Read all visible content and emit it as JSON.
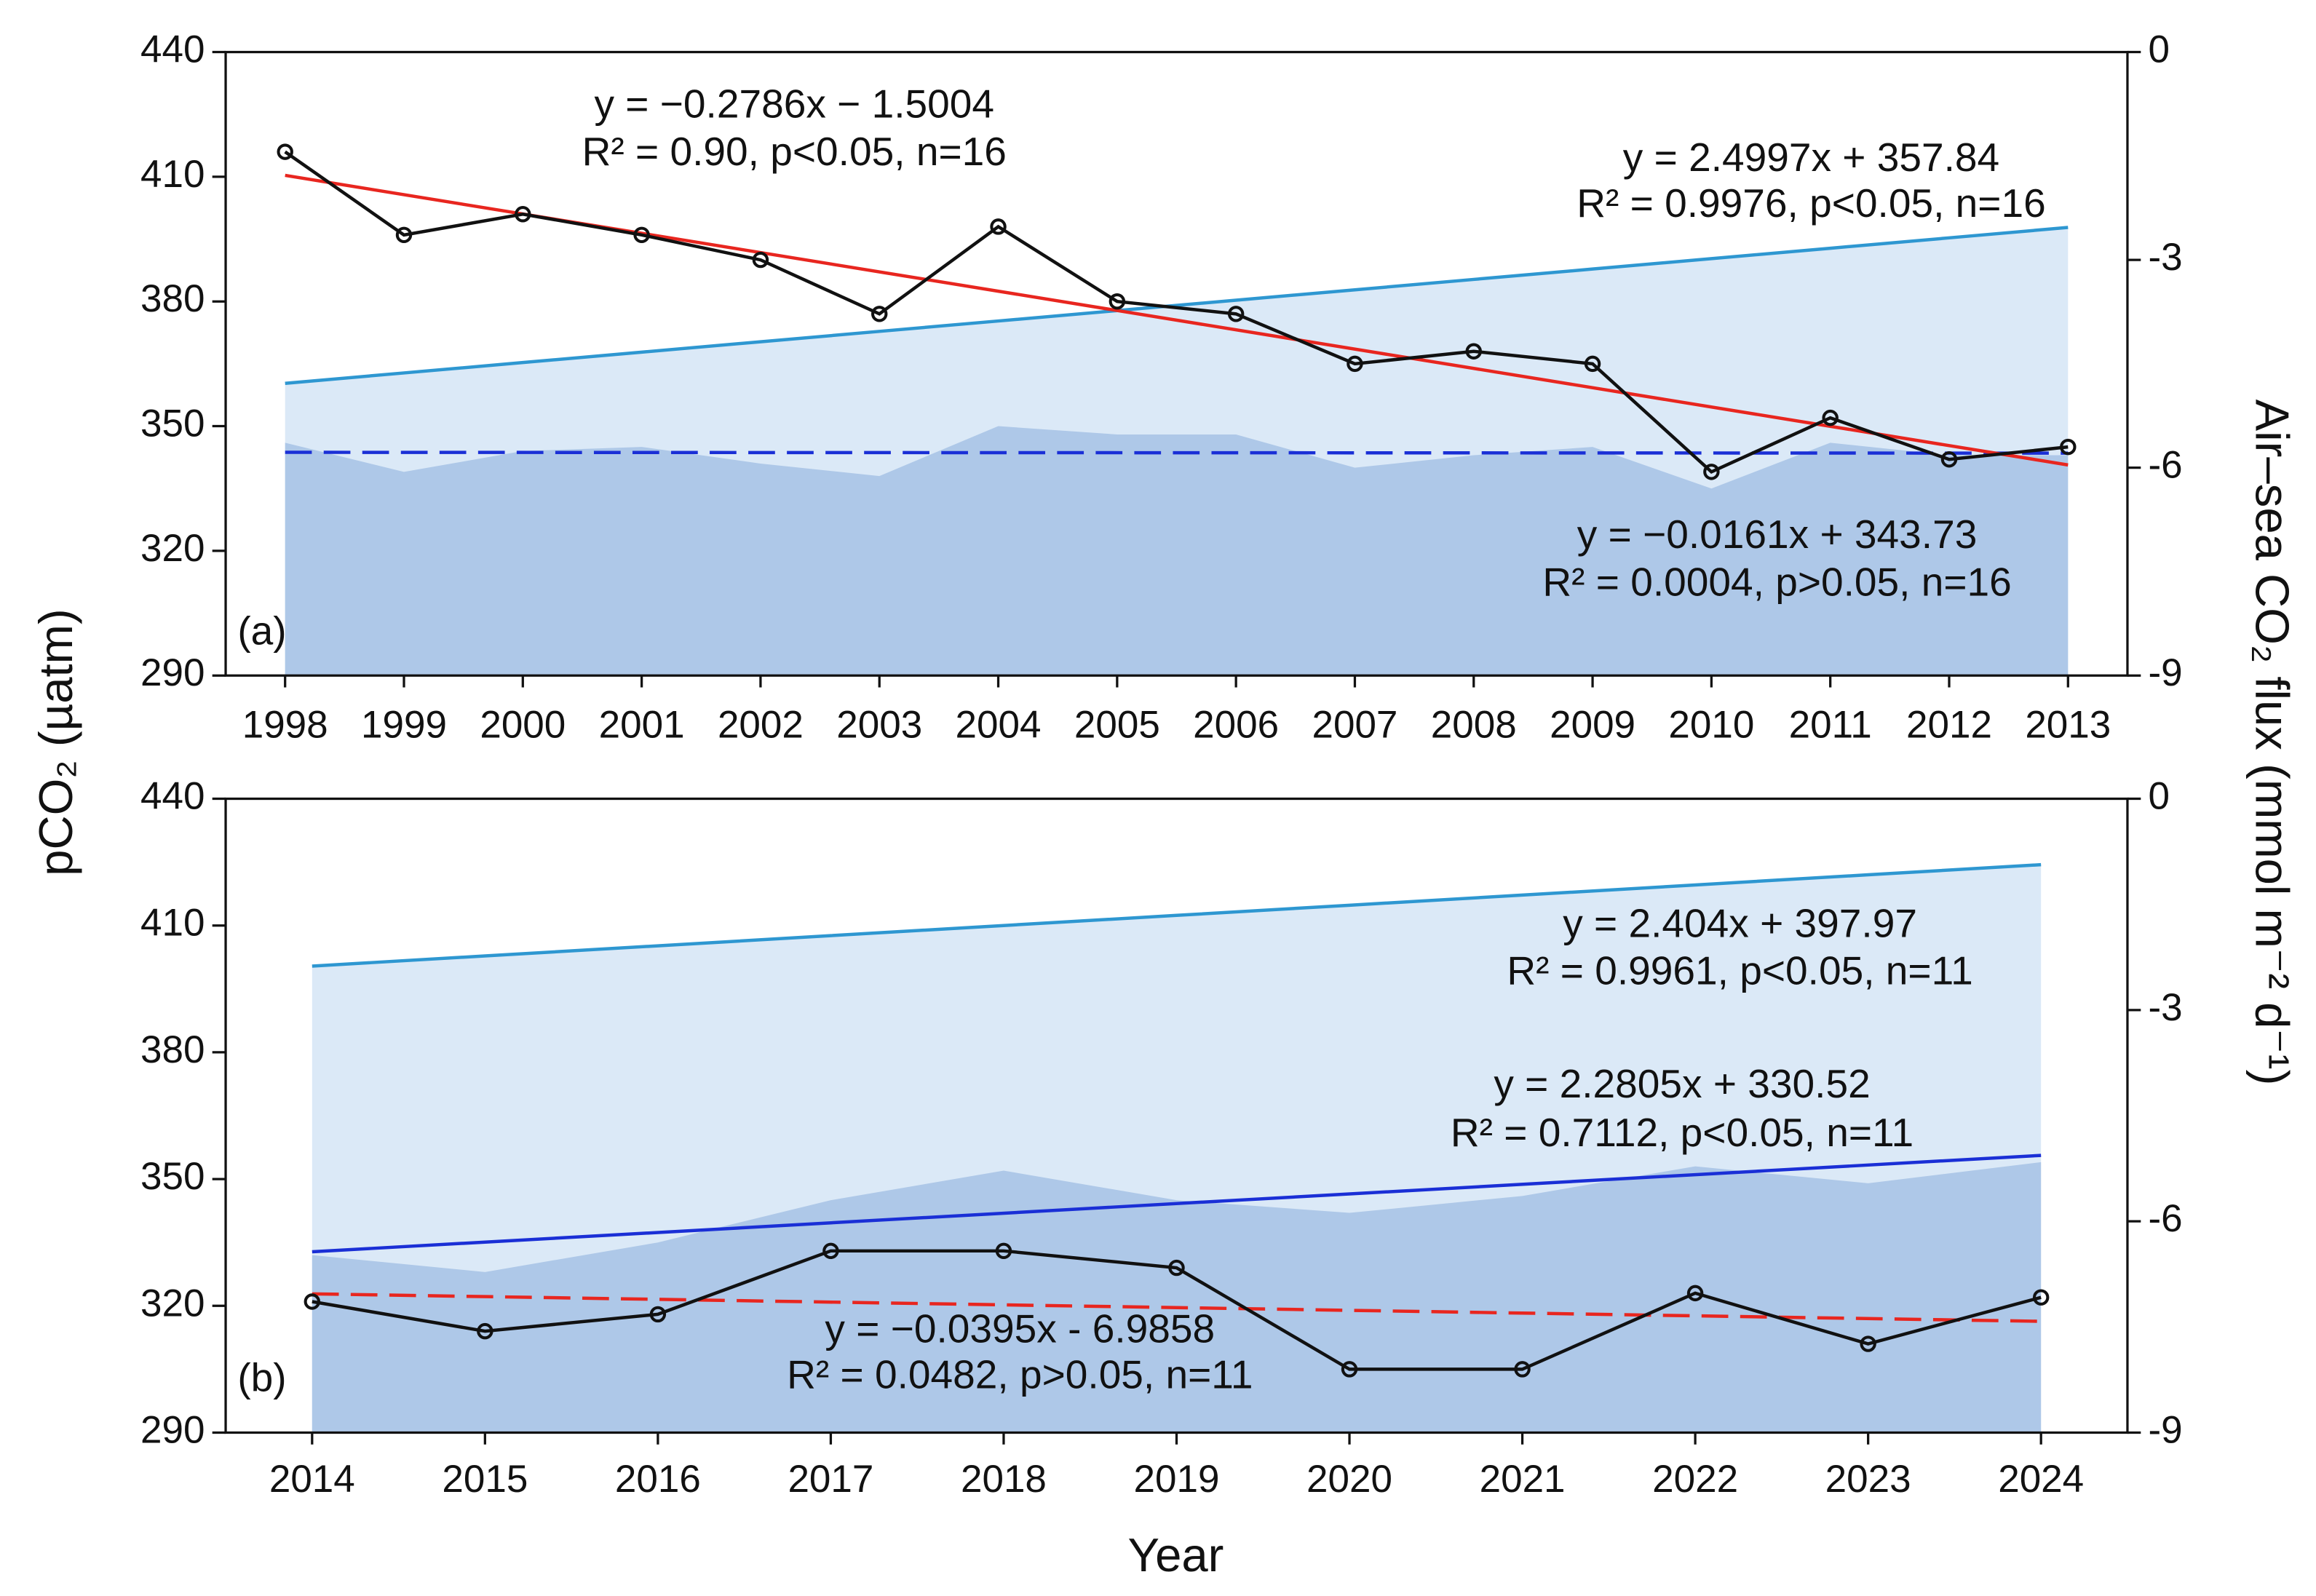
{
  "chart_data": [
    {
      "type": "line",
      "panel_label": "(a)",
      "x": [
        1998,
        1999,
        2000,
        2001,
        2002,
        2003,
        2004,
        2005,
        2006,
        2007,
        2008,
        2009,
        2010,
        2011,
        2012,
        2013
      ],
      "xticks": [
        1998,
        1999,
        2000,
        2001,
        2002,
        2003,
        2004,
        2005,
        2006,
        2007,
        2008,
        2009,
        2010,
        2011,
        2012,
        2013
      ],
      "xlim": [
        1997.5,
        2013.5
      ],
      "ylim": [
        290,
        440
      ],
      "yticks": [
        290,
        320,
        350,
        380,
        410,
        440
      ],
      "y2lim": [
        -9,
        0
      ],
      "y2ticks": [
        -9,
        -6,
        -3,
        0
      ],
      "series": [
        {
          "color": "#2e97d1",
          "fill": "#dbe9f7",
          "values": [
            360.3,
            362.8,
            365.3,
            367.8,
            370.3,
            372.8,
            375.3,
            377.8,
            380.3,
            382.8,
            385.3,
            387.8,
            390.3,
            392.8,
            395.3,
            397.8
          ]
        },
        {
          "fill": "#aec8e8",
          "values": [
            346,
            339,
            344,
            345,
            341,
            338,
            350,
            348,
            348,
            340,
            343,
            345,
            335,
            346,
            343,
            343
          ]
        },
        {
          "color": "#1a2fd6",
          "dashed": true,
          "x": [
            1998,
            2013
          ],
          "values": [
            343.7,
            343.5
          ]
        },
        {
          "color": "#e8261f",
          "axis": "y2",
          "x": [
            1998,
            2013
          ],
          "values": [
            -1.78,
            -5.96
          ]
        },
        {
          "color": "#111111",
          "axis": "y2",
          "markers": true,
          "values": [
            -1.44,
            -2.64,
            -2.34,
            -2.64,
            -3.0,
            -3.78,
            -2.52,
            -3.6,
            -3.78,
            -4.5,
            -4.32,
            -4.5,
            -6.06,
            -5.28,
            -5.88,
            -5.7
          ]
        }
      ],
      "annotations": [
        "y = −0.2786x − 1.5004",
        "R² = 0.90, p<0.05, n=16",
        "y = 2.4997x + 357.84",
        "R² = 0.9976, p<0.05, n=16",
        "y = −0.0161x + 343.73",
        "R² = 0.0004, p>0.05, n=16"
      ]
    },
    {
      "type": "line",
      "panel_label": "(b)",
      "x": [
        2014,
        2015,
        2016,
        2017,
        2018,
        2019,
        2020,
        2021,
        2022,
        2023,
        2024
      ],
      "xticks": [
        2014,
        2015,
        2016,
        2017,
        2018,
        2019,
        2020,
        2021,
        2022,
        2023,
        2024
      ],
      "xlim": [
        2013.5,
        2024.5
      ],
      "ylim": [
        290,
        440
      ],
      "yticks": [
        290,
        320,
        350,
        380,
        410,
        440
      ],
      "y2lim": [
        -9,
        0
      ],
      "y2ticks": [
        -9,
        -6,
        -3,
        0
      ],
      "series": [
        {
          "color": "#2e97d1",
          "fill": "#dbe9f7",
          "values": [
            400.4,
            402.8,
            405.2,
            407.6,
            410.0,
            412.4,
            414.8,
            417.2,
            419.6,
            422.0,
            424.4
          ]
        },
        {
          "fill": "#aec8e8",
          "values": [
            332,
            328,
            335,
            345,
            352,
            345,
            342,
            346,
            353,
            349,
            354
          ]
        },
        {
          "color": "#1a2fd6",
          "x": [
            2014,
            2024
          ],
          "values": [
            332.8,
            355.6
          ]
        },
        {
          "color": "#e8261f",
          "dashed": true,
          "axis": "y2",
          "x": [
            2014,
            2024
          ],
          "values": [
            -7.03,
            -7.42
          ]
        },
        {
          "color": "#111111",
          "axis": "y2",
          "markers": true,
          "values": [
            -7.14,
            -7.56,
            -7.32,
            -6.42,
            -6.42,
            -6.66,
            -8.1,
            -8.1,
            -7.02,
            -7.74,
            -7.08
          ]
        }
      ],
      "annotations": [
        "y = 2.404x + 397.97",
        "R² = 0.9961, p<0.05, n=11",
        "y = 2.2805x + 330.52",
        "R² = 0.7112, p<0.05, n=11",
        "y = −0.0395x - 6.9858",
        "R² = 0.0482, p>0.05, n=11"
      ]
    }
  ],
  "ylabel": "pCO₂ (µatm)",
  "y2label": "Air–sea CO₂ flux  (mmol m⁻² d⁻¹)",
  "xlabel": "Year"
}
